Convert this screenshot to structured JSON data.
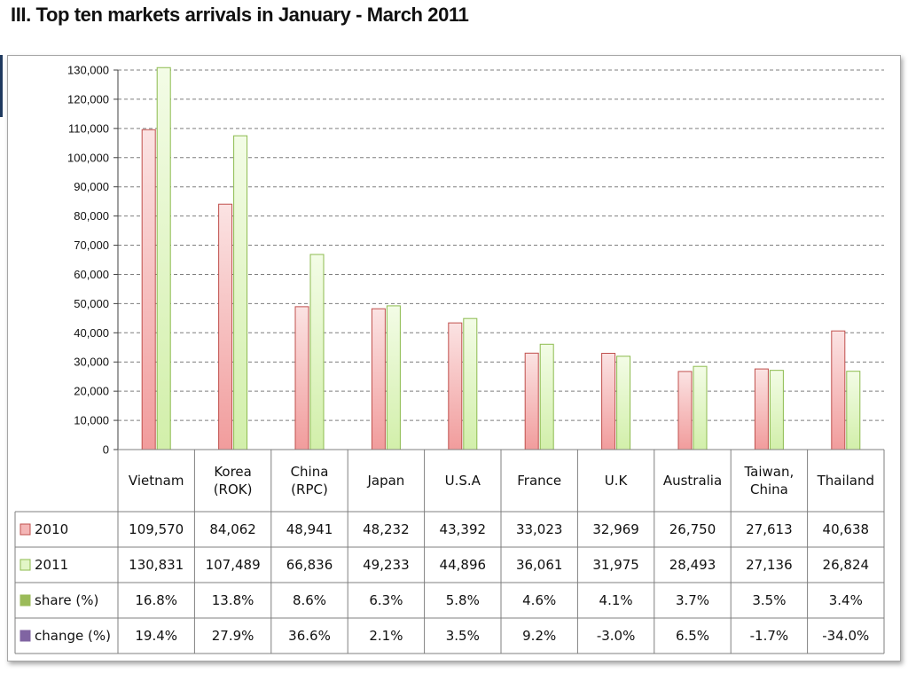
{
  "page": {
    "title": "III.  Top ten markets arrivals in January - March 2011"
  },
  "colors": {
    "series_2010_fill": "#f4b6b6",
    "series_2010_edge": "#c0504d",
    "series_2011_fill": "#e2f6c6",
    "series_2011_edge": "#8dbb4f",
    "share_marker": "#9bbb59",
    "change_marker": "#8064a2",
    "grid": "#7f7f7f"
  },
  "chart_data": {
    "type": "bar",
    "categories": [
      [
        "Vietnam"
      ],
      [
        "Korea",
        "(ROK)"
      ],
      [
        "China",
        "(RPC)"
      ],
      [
        "Japan"
      ],
      [
        "U.S.A"
      ],
      [
        "France"
      ],
      [
        "U.K"
      ],
      [
        "Australia"
      ],
      [
        "Taiwan,",
        "China"
      ],
      [
        "Thailand"
      ]
    ],
    "series": [
      {
        "name": "2010",
        "values": [
          109570,
          84062,
          48941,
          48232,
          43392,
          33023,
          32969,
          26750,
          27613,
          40638
        ]
      },
      {
        "name": "2011",
        "values": [
          130831,
          107489,
          66836,
          49233,
          44896,
          36061,
          31975,
          28493,
          27136,
          26824
        ]
      }
    ],
    "ylim": [
      0,
      130000
    ],
    "yticks": [
      "0",
      "10,000",
      "20,000",
      "30,000",
      "40,000",
      "50,000",
      "60,000",
      "70,000",
      "80,000",
      "90,000",
      "100,000",
      "110,000",
      "120,000",
      "130,000"
    ],
    "grid": true,
    "legend": "data-table",
    "table": {
      "rows": [
        {
          "label": "2010",
          "marker": "series_2010",
          "cells": [
            "109,570",
            "84,062",
            "48,941",
            "48,232",
            "43,392",
            "33,023",
            "32,969",
            "26,750",
            "27,613",
            "40,638"
          ]
        },
        {
          "label": "2011",
          "marker": "series_2011",
          "cells": [
            "130,831",
            "107,489",
            "66,836",
            "49,233",
            "44,896",
            "36,061",
            "31,975",
            "28,493",
            "27,136",
            "26,824"
          ]
        },
        {
          "label": "share (%)",
          "marker": "share",
          "cells": [
            "16.8%",
            "13.8%",
            "8.6%",
            "6.3%",
            "5.8%",
            "4.6%",
            "4.1%",
            "3.7%",
            "3.5%",
            "3.4%"
          ]
        },
        {
          "label": "change (%)",
          "marker": "change",
          "cells": [
            "19.4%",
            "27.9%",
            "36.6%",
            "2.1%",
            "3.5%",
            "9.2%",
            "-3.0%",
            "6.5%",
            "-1.7%",
            "-34.0%"
          ]
        }
      ]
    }
  }
}
